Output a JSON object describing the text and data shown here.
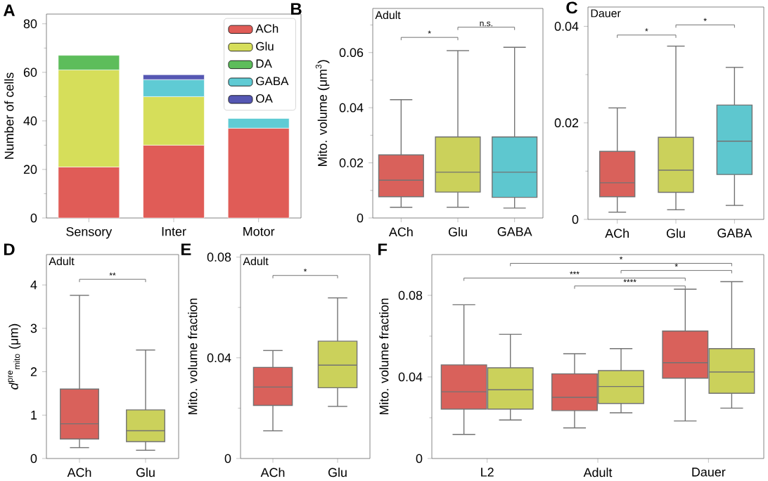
{
  "chart_data": [
    {
      "type": "bar",
      "stacked": true,
      "ylabel": "Number of cells",
      "categories": [
        "Sensory",
        "Inter",
        "Motor"
      ],
      "ylim": [
        0,
        84
      ],
      "yticks": [
        0,
        {
          "value": 10,
          "label": null
        },
        20,
        {
          "value": 30,
          "label": null
        },
        40,
        {
          "value": 50,
          "label": null
        },
        60,
        {
          "value": 70,
          "label": null
        },
        80
      ],
      "legend": "top right",
      "annotations": [
        "A"
      ],
      "series": [
        {
          "name": "ACh",
          "color": "#e05c57",
          "values": [
            21,
            30,
            37
          ]
        },
        {
          "name": "Glu",
          "color": "#d6de5a",
          "values": [
            40,
            20,
            null
          ]
        },
        {
          "name": "DA",
          "color": "#5dbd5b",
          "values": [
            6,
            null,
            null
          ]
        },
        {
          "name": "GABA",
          "color": "#5fcbd4",
          "values": [
            null,
            7,
            4
          ]
        },
        {
          "name": "OA",
          "color": "#5557b3",
          "values": [
            null,
            2,
            null
          ]
        }
      ]
    },
    {
      "type": "box",
      "ylabel": "Mito. volume (μm$^{3}$)",
      "categories": [
        "ACh",
        "Glu",
        "GABA"
      ],
      "colors": [
        "#d9615b",
        "#cbd15b",
        "#5ec7cf"
      ],
      "ylim": [
        0,
        0.076
      ],
      "yticks": [
        0,
        {
          "value": 0.01,
          "label": null
        },
        0.02,
        {
          "value": 0.03,
          "label": null
        },
        0.04,
        {
          "value": 0.05,
          "label": null
        },
        0.06,
        {
          "value": 0.07,
          "label": null
        }
      ],
      "annotations": [
        "B",
        "Adult",
        "*",
        "n.s."
      ],
      "boxes": [
        {
          "low": 0.0039,
          "q1": 0.0077,
          "median": 0.0137,
          "q3": 0.0229,
          "high": 0.0429
        },
        {
          "low": 0.0039,
          "q1": 0.0094,
          "median": 0.0166,
          "q3": 0.0294,
          "high": 0.0607
        },
        {
          "low": 0.0036,
          "q1": 0.0075,
          "median": 0.0166,
          "q3": 0.0294,
          "high": 0.0619
        }
      ]
    },
    {
      "type": "box",
      "categories": [
        "ACh",
        "Glu",
        "GABA"
      ],
      "colors": [
        "#d9615b",
        "#cbd15b",
        "#5ec7cf"
      ],
      "ylim": [
        0,
        0.044
      ],
      "yticks": [
        0,
        {
          "value": 0.01,
          "label": null
        },
        0.02,
        {
          "value": 0.03,
          "label": null
        },
        0.04
      ],
      "annotations": [
        "C",
        "Dauer",
        "*",
        "*"
      ],
      "boxes": [
        {
          "low": 0.0015,
          "q1": 0.0047,
          "median": 0.0076,
          "q3": 0.0141,
          "high": 0.0231
        },
        {
          "low": 0.002,
          "q1": 0.0056,
          "median": 0.0102,
          "q3": 0.017,
          "high": 0.0359
        },
        {
          "low": 0.0029,
          "q1": 0.0093,
          "median": 0.0162,
          "q3": 0.0237,
          "high": 0.0315
        }
      ]
    },
    {
      "type": "box",
      "ylabel": "*d*$^{pre}$$_{mito}$ (μm)",
      "categories": [
        "ACh",
        "Glu"
      ],
      "colors": [
        "#d9615b",
        "#cbd15b"
      ],
      "ylim": [
        0,
        4.7
      ],
      "yticks": [
        0,
        1,
        2,
        3,
        4
      ],
      "annotations": [
        "D",
        "Adult",
        "**"
      ],
      "boxes": [
        {
          "low": 0.25,
          "q1": 0.45,
          "median": 0.8,
          "q3": 1.6,
          "high": 3.76
        },
        {
          "low": 0.19,
          "q1": 0.39,
          "median": 0.64,
          "q3": 1.12,
          "high": 2.5
        }
      ]
    },
    {
      "type": "box",
      "ylabel": "Mito. volume fraction",
      "categories": [
        "ACh",
        "Glu"
      ],
      "colors": [
        "#d9615b",
        "#cbd15b"
      ],
      "ylim": [
        0,
        0.081
      ],
      "yticks": [
        0,
        {
          "value": 0.02,
          "label": null
        },
        0.04,
        {
          "value": 0.06,
          "label": null
        },
        0.08
      ],
      "annotations": [
        "E",
        "Adult",
        "*"
      ],
      "boxes": [
        {
          "low": 0.011,
          "q1": 0.0211,
          "median": 0.0284,
          "q3": 0.0362,
          "high": 0.0429
        },
        {
          "low": 0.0207,
          "q1": 0.0281,
          "median": 0.0371,
          "q3": 0.0466,
          "high": 0.0638
        }
      ]
    },
    {
      "type": "box",
      "ylabel": "Mito. volume fraction",
      "categories": [
        "L2",
        "Adult",
        "Dauer"
      ],
      "ylim": [
        0,
        0.1
      ],
      "yticks": [
        0,
        {
          "value": 0.02,
          "label": null
        },
        0.04,
        {
          "value": 0.06,
          "label": null
        },
        0.08
      ],
      "annotations": [
        "F",
        "*",
        "*",
        "***",
        "****"
      ],
      "series": [
        {
          "color": "#d9615b",
          "boxes": [
            {
              "low": 0.0118,
              "q1": 0.0242,
              "median": 0.0327,
              "q3": 0.0459,
              "high": 0.0754
            },
            {
              "low": 0.015,
              "q1": 0.0235,
              "median": 0.03,
              "q3": 0.0415,
              "high": 0.0514
            },
            {
              "low": 0.0184,
              "q1": 0.0394,
              "median": 0.047,
              "q3": 0.0625,
              "high": 0.083
            }
          ]
        },
        {
          "color": "#cbd15b",
          "boxes": [
            {
              "low": 0.0189,
              "q1": 0.0242,
              "median": 0.0337,
              "q3": 0.0445,
              "high": 0.0609
            },
            {
              "low": 0.0224,
              "q1": 0.027,
              "median": 0.0353,
              "q3": 0.0431,
              "high": 0.0539
            },
            {
              "low": 0.0247,
              "q1": 0.032,
              "median": 0.0424,
              "q3": 0.0539,
              "high": 0.0867
            }
          ]
        }
      ]
    }
  ]
}
